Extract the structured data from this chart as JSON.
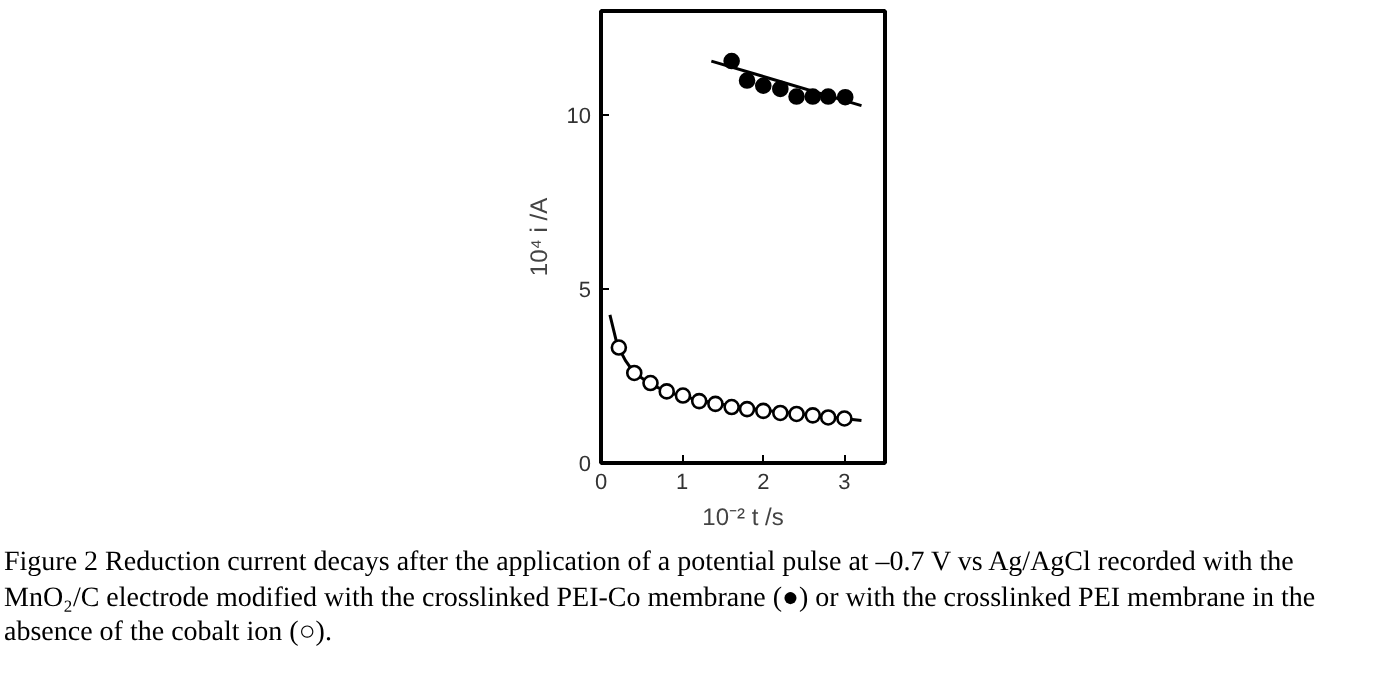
{
  "chart_data": {
    "type": "scatter",
    "xlabel": "10⁻² t /s",
    "ylabel": "10⁴ i /A",
    "xlim": [
      0,
      3.5
    ],
    "ylim": [
      0,
      13
    ],
    "xticks": [
      0,
      1,
      2,
      3
    ],
    "yticks": [
      0,
      5,
      10
    ],
    "series": [
      {
        "marker": "circle",
        "color": "#000000",
        "x": [
          1.61,
          1.8,
          2.0,
          2.21,
          2.41,
          2.61,
          2.8,
          3.01
        ],
        "values": [
          11.56,
          11.0,
          10.85,
          10.76,
          10.54,
          10.54,
          10.54,
          10.52
        ]
      },
      {
        "type": "line",
        "color": "#000000",
        "x": [
          1.36,
          3.21
        ],
        "values": [
          11.56,
          10.28
        ]
      },
      {
        "marker": "circle",
        "color": "#ffffff",
        "x": [
          0.22,
          0.41,
          0.61,
          0.81,
          1.01,
          1.21,
          1.41,
          1.61,
          1.8,
          2.0,
          2.21,
          2.41,
          2.61,
          2.8,
          3.0
        ],
        "values": [
          3.32,
          2.59,
          2.3,
          2.06,
          1.94,
          1.78,
          1.7,
          1.61,
          1.55,
          1.5,
          1.44,
          1.41,
          1.37,
          1.31,
          1.28
        ]
      },
      {
        "type": "line",
        "color": "#000000",
        "x": [
          0.11,
          0.2,
          0.3,
          0.4,
          0.6,
          0.8,
          1.0,
          1.4,
          2.0,
          2.6,
          3.21
        ],
        "values": [
          4.26,
          3.4,
          2.95,
          2.62,
          2.28,
          2.06,
          1.92,
          1.72,
          1.52,
          1.38,
          1.22
        ]
      }
    ],
    "annotations": [
      "Figure 2 Reduction current decays after the application of a potential pulse at –0.7 V vs Ag/AgCl recorded with the MnO₂/C electrode modified with the crosslinked PEI-Co membrane (●) or with the crosslinked PEI membrane in the absence of the cobalt ion (○)."
    ]
  }
}
